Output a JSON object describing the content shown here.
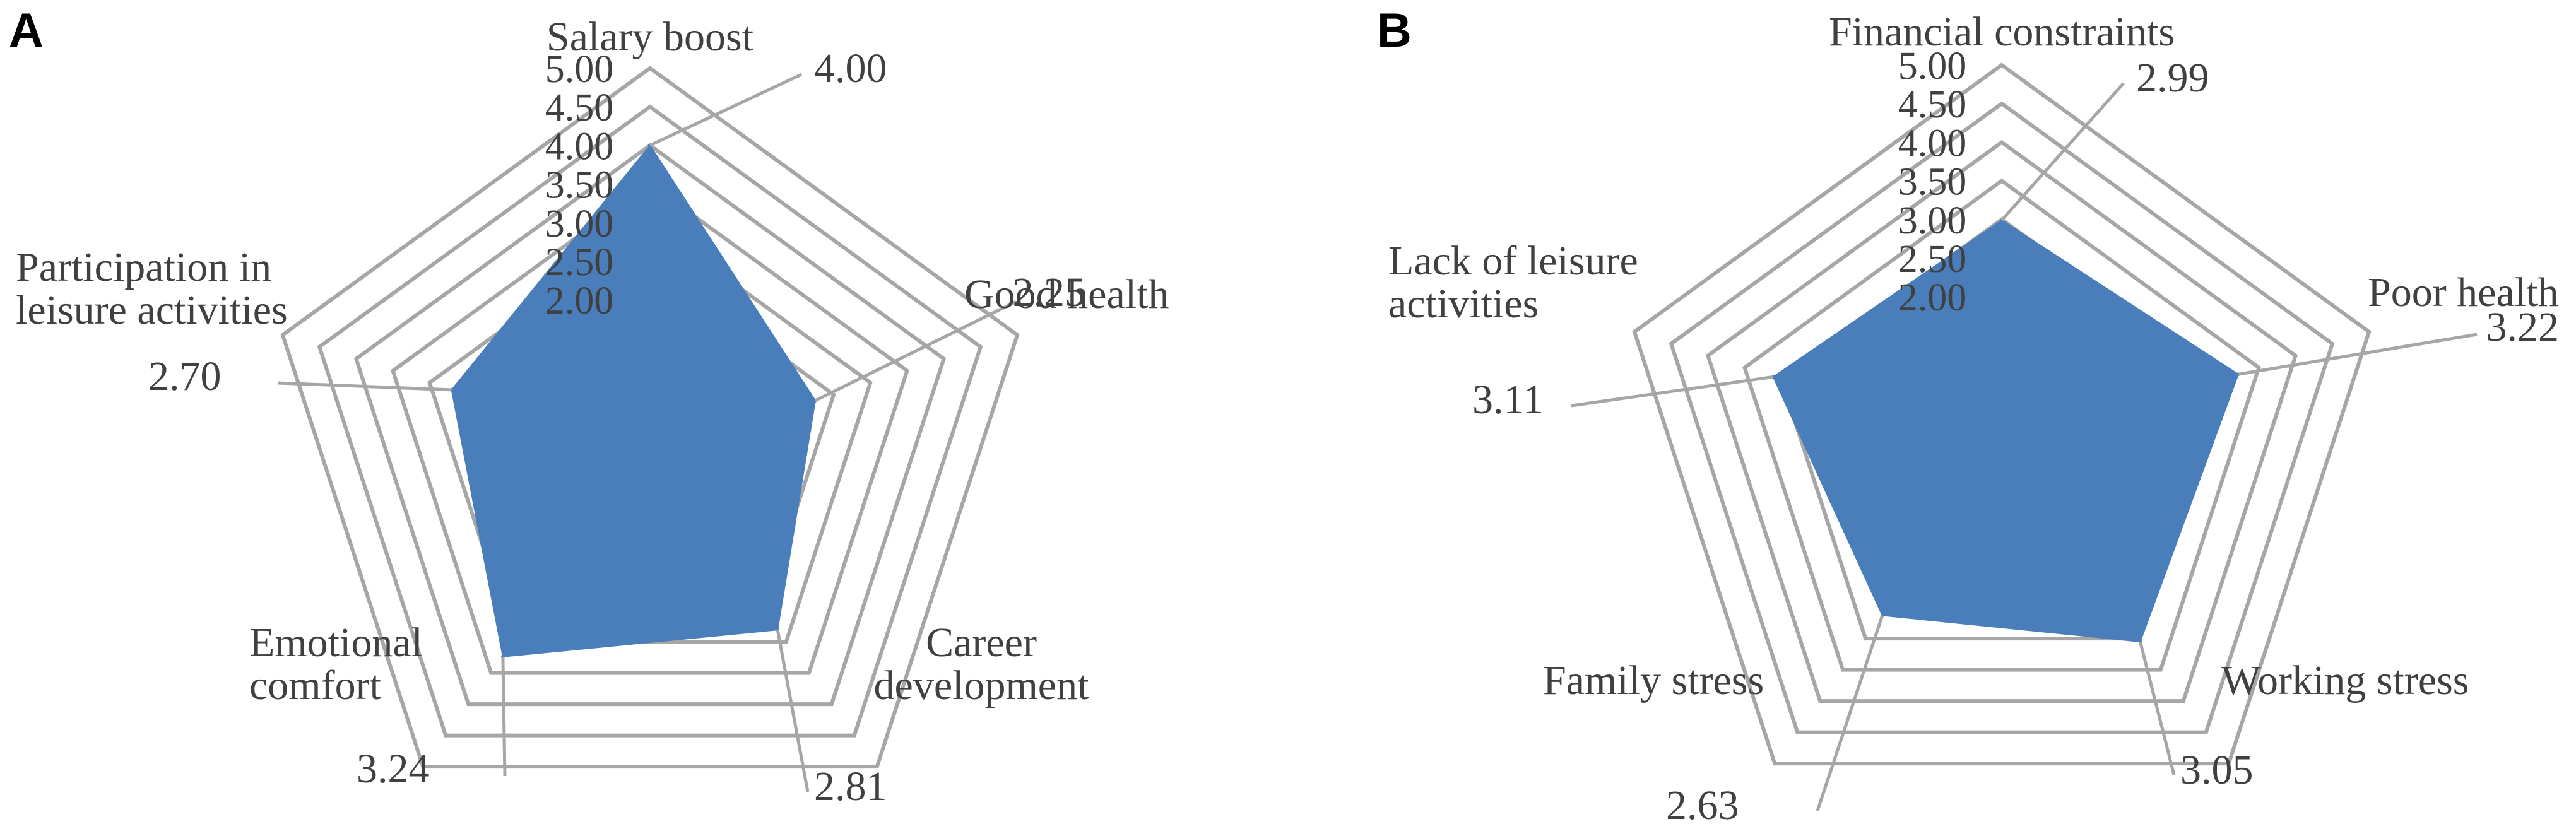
{
  "colors": {
    "grid": "#a6a6a6",
    "fill": "#4a7ebb",
    "text": "#404040",
    "leader": "#a6a6a6"
  },
  "chart_data": [
    {
      "type": "radar",
      "panel_label": "A",
      "title": "",
      "r_min": 2.0,
      "r_max": 5.0,
      "ring_labels": [
        "2.00",
        "2.50",
        "3.00",
        "3.50",
        "4.00",
        "4.50",
        "5.00"
      ],
      "categories": [
        "Salary boost",
        "Good health",
        "Career development",
        "Emotional comfort",
        "Participation in leisure activities"
      ],
      "category_lines": [
        [
          "Salary boost"
        ],
        [
          "Good health"
        ],
        [
          "Career",
          "development"
        ],
        [
          "Emotional",
          "comfort"
        ],
        [
          "Participation in",
          "leisure activities"
        ]
      ],
      "values": [
        4.0,
        2.25,
        2.81,
        3.24,
        2.7
      ],
      "value_labels": [
        "4.00",
        "2.25",
        "2.81",
        "3.24",
        "2.70"
      ]
    },
    {
      "type": "radar",
      "panel_label": "B",
      "title": "",
      "r_min": 2.0,
      "r_max": 5.0,
      "ring_labels": [
        "2.00",
        "2.50",
        "3.00",
        "3.50",
        "4.00",
        "4.50",
        "5.00"
      ],
      "categories": [
        "Financial constraints",
        "Poor health",
        "Working stress",
        "Family stress",
        "Lack of leisure activities"
      ],
      "category_lines": [
        [
          "Financial constraints"
        ],
        [
          "Poor health"
        ],
        [
          "Working stress"
        ],
        [
          "Family stress"
        ],
        [
          "Lack of leisure",
          "activities"
        ]
      ],
      "values": [
        2.99,
        3.22,
        3.05,
        2.63,
        3.11
      ],
      "value_labels": [
        "2.99",
        "3.22",
        "3.05",
        "2.63",
        "3.11"
      ]
    }
  ]
}
